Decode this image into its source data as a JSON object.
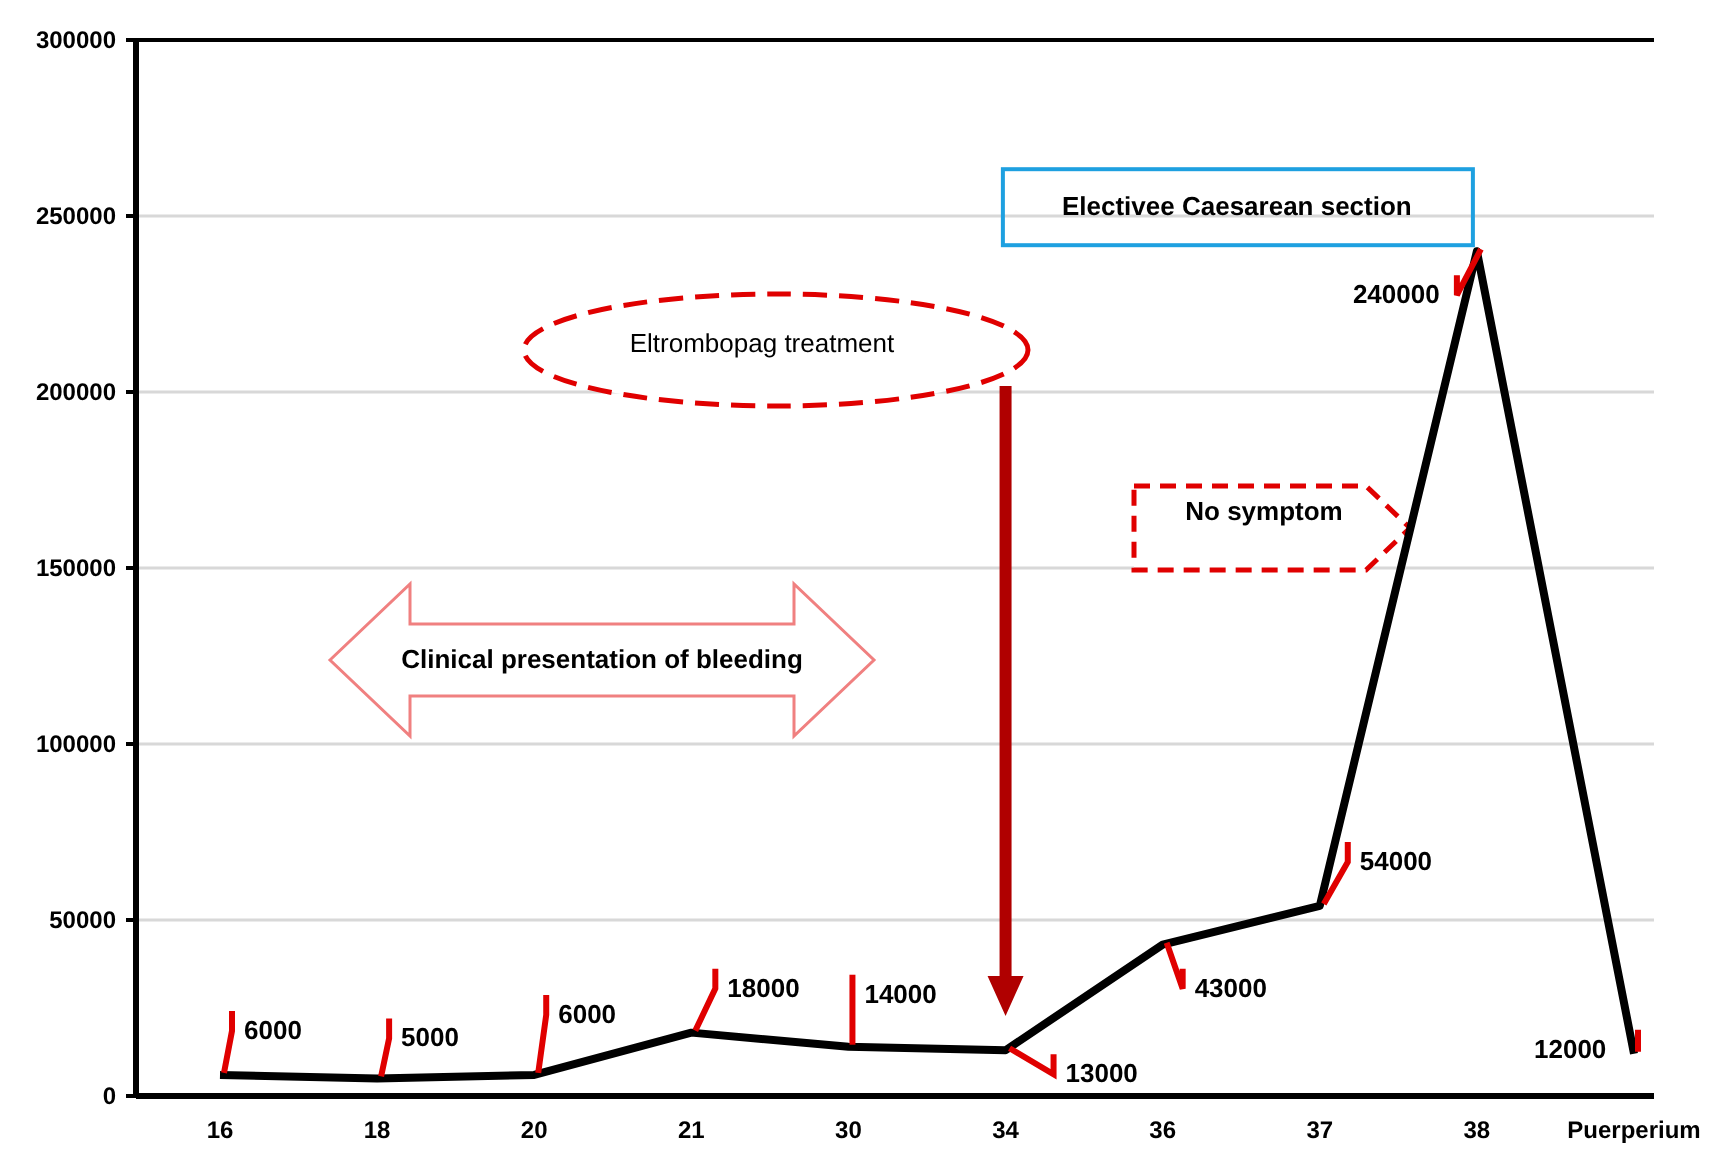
{
  "chart_data": {
    "type": "line",
    "categories": [
      "16",
      "18",
      "20",
      "21",
      "30",
      "34",
      "36",
      "37",
      "38",
      "Puerperium"
    ],
    "series": [
      {
        "color": "#000000",
        "values": [
          6000,
          5000,
          6000,
          18000,
          14000,
          13000,
          43000,
          54000,
          240000,
          12000
        ]
      }
    ],
    "ylim": [
      0,
      300000
    ],
    "yticks": [
      0,
      50000,
      100000,
      150000,
      200000,
      250000,
      300000
    ],
    "grid": "y",
    "data_labels": true,
    "marker": "none",
    "line_style": "solid",
    "annotations": [
      "Clinical presentation of bleeding",
      "Eltrombopag treatment",
      "No symptom",
      {
        "text": "Electivee Caesarean section",
        "x": "38",
        "y": 240000
      }
    ]
  }
}
